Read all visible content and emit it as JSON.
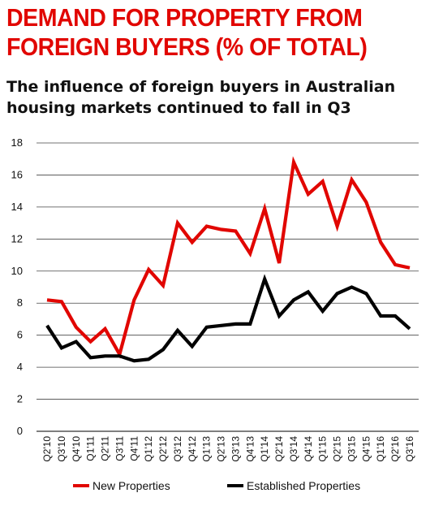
{
  "title": "DEMAND FOR PROPERTY FROM FOREIGN BUYERS (% OF TOTAL)",
  "subtitle": "The influence of foreign buyers in Australian housing markets continued to fall in Q3",
  "chart_data": {
    "type": "line",
    "title": "DEMAND FOR PROPERTY FROM FOREIGN BUYERS (% OF TOTAL)",
    "subtitle": "The influence of foreign buyers in Australian housing markets continued to fall in Q3",
    "xlabel": "",
    "ylabel": "",
    "ylim": [
      0,
      18
    ],
    "yticks": [
      0,
      2,
      4,
      6,
      8,
      10,
      12,
      14,
      16,
      18
    ],
    "grid": true,
    "legend_position": "bottom",
    "categories": [
      "Q2'10",
      "Q3'10",
      "Q4'10",
      "Q1'11",
      "Q2'11",
      "Q3'11",
      "Q4'11",
      "Q1'12",
      "Q2'12",
      "Q3'12",
      "Q4'12",
      "Q1'13",
      "Q2'13",
      "Q3'13",
      "Q4'13",
      "Q1'14",
      "Q2'14",
      "Q3'14",
      "Q4'14",
      "Q1'15",
      "Q2'15",
      "Q3'15",
      "Q4'15",
      "Q1'16",
      "Q2'16",
      "Q3'16"
    ],
    "series": [
      {
        "name": "New Properties",
        "color": "#e10600",
        "values": [
          8.2,
          8.1,
          6.5,
          5.6,
          6.4,
          4.8,
          8.2,
          10.1,
          9.1,
          13.0,
          11.8,
          12.8,
          12.6,
          12.5,
          11.1,
          13.9,
          10.5,
          16.8,
          14.8,
          15.6,
          12.8,
          15.7,
          14.3,
          11.8,
          10.4,
          10.2
        ]
      },
      {
        "name": "Established Properties",
        "color": "#000000",
        "values": [
          6.6,
          5.2,
          5.6,
          4.6,
          4.7,
          4.7,
          4.4,
          4.5,
          5.1,
          6.3,
          5.3,
          6.5,
          6.6,
          6.7,
          6.7,
          9.5,
          7.2,
          8.2,
          8.7,
          7.5,
          8.6,
          9.0,
          8.6,
          7.2,
          7.2,
          6.4
        ]
      }
    ]
  }
}
